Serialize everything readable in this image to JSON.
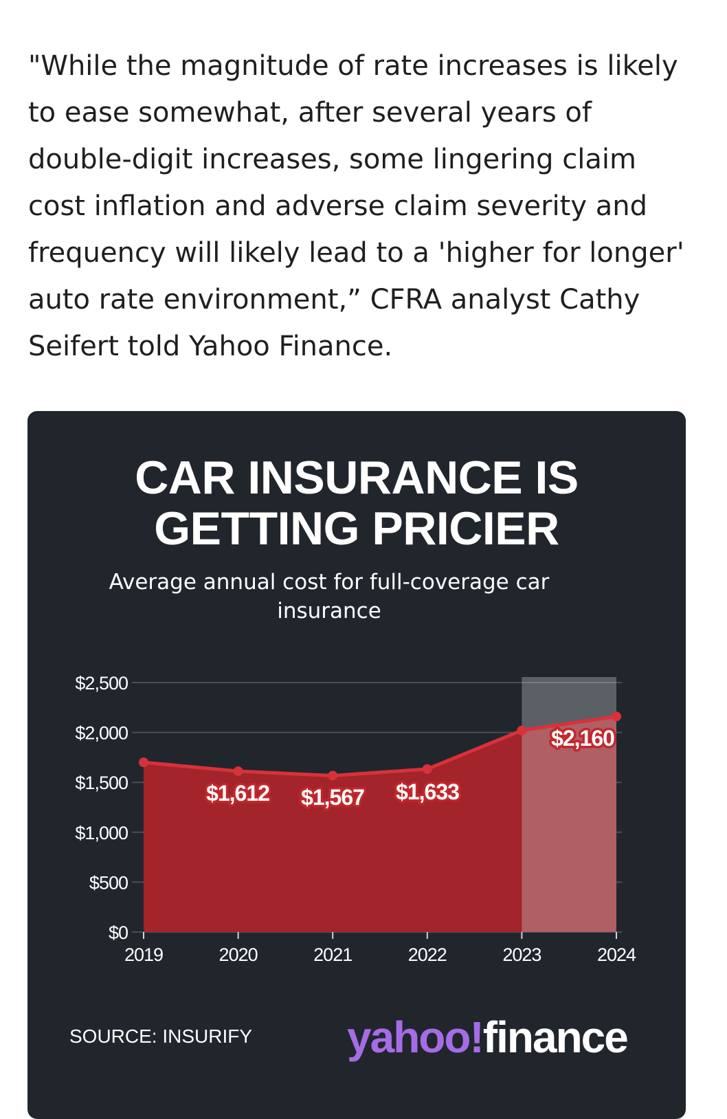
{
  "article": {
    "quote": "\"While the magnitude of rate increases is likely to ease somewhat, after several years of double-digit increases, some lingering claim cost inflation and adverse claim severity and frequency will likely lead to a 'higher for longer' auto rate environment,” CFRA analyst Cathy Seifert told Yahoo Finance."
  },
  "card": {
    "title_line1": "CAR INSURANCE IS",
    "title_line2": "GETTING PRICIER",
    "subtitle": "Average annual cost for full-coverage car insurance",
    "source": "SOURCE: INSURIFY",
    "logo_part1": "yahoo!",
    "logo_part2": "finance"
  },
  "chart_data": {
    "type": "area",
    "title": "CAR INSURANCE IS GETTING PRICIER",
    "subtitle": "Average annual cost for full-coverage car insurance",
    "x": [
      "2019",
      "2020",
      "2021",
      "2022",
      "2023",
      "2024"
    ],
    "series": [
      {
        "values": [
          1700,
          1612,
          1567,
          1633,
          2020,
          2160
        ],
        "labels": [
          "",
          "$1,612",
          "$1,567",
          "$1,633",
          "",
          "$2,160"
        ]
      }
    ],
    "ylim": [
      0,
      2500
    ],
    "yticks": [
      0,
      500,
      1000,
      1500,
      2000,
      2500
    ],
    "ytick_labels": [
      "$0",
      "$500",
      "$1,000",
      "$1,500",
      "$2,000",
      "$2,500"
    ],
    "highlight_range": [
      "2023",
      "2024"
    ],
    "grid": true,
    "colors": {
      "area": "#a3242a",
      "line": "#d9313a",
      "label_text": "#ffffff",
      "label_stroke": "#c1272d",
      "highlight": "#c9cdd2",
      "grid": "#4a4f57",
      "background": "#21262d"
    }
  }
}
